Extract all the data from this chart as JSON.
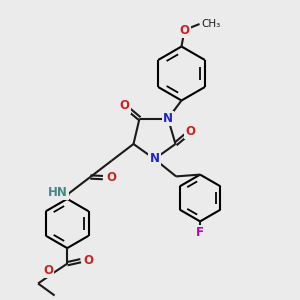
{
  "bg_color": "#ebebeb",
  "bond_color": "#1a1a1a",
  "N_color": "#2222cc",
  "O_color": "#cc2222",
  "F_color": "#bb00bb",
  "H_color": "#448888",
  "line_width": 1.5,
  "font_size": 8.5,
  "figsize": [
    3.0,
    3.0
  ],
  "dpi": 100,
  "xlim": [
    0,
    10
  ],
  "ylim": [
    0,
    10
  ]
}
